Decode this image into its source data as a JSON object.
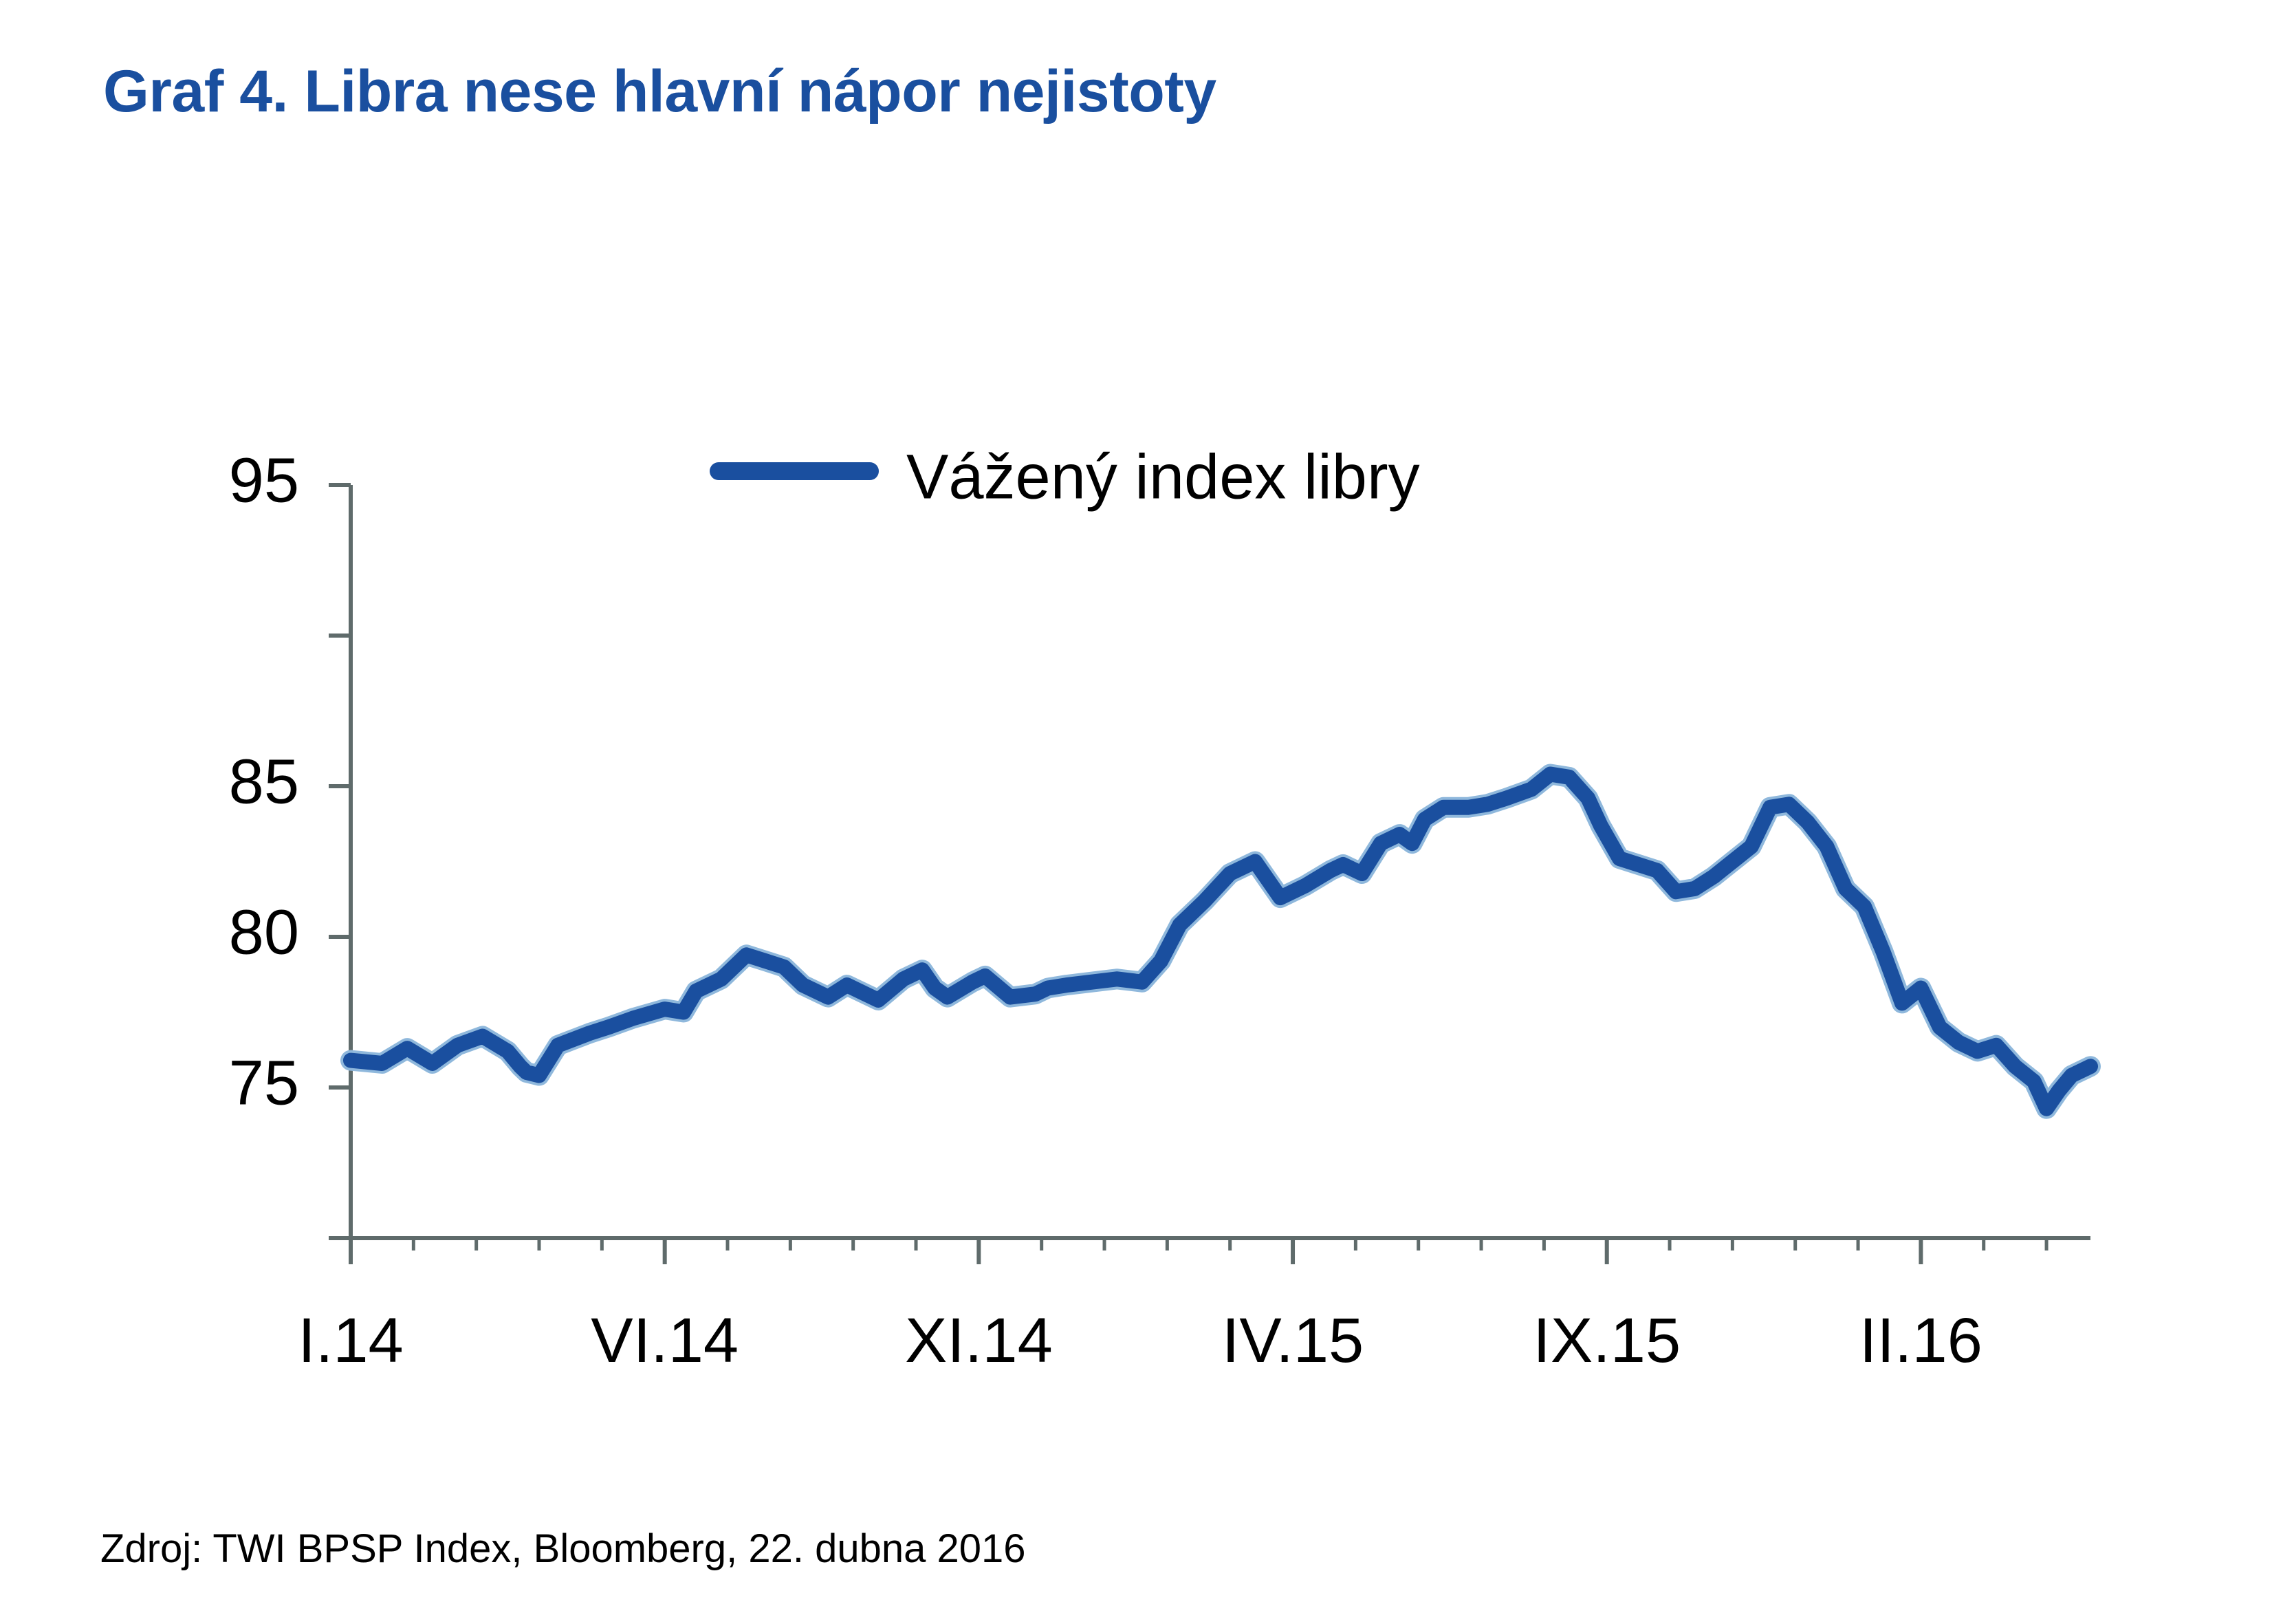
{
  "title": "Graf 4. Libra nese hlavní nápor nejistoty",
  "source": "Zdroj: TWI BPSP Index, Bloomberg, 22. dubna 2016",
  "colors": {
    "title": "#1a4f9f",
    "line": "#1a4f9f",
    "line_halo": "#8fb8dc",
    "axis": "#5f6b6b"
  },
  "chart_data": {
    "type": "line",
    "title": "Graf 4. Libra nese hlavní nápor nejistoty",
    "legend": {
      "position": "top-center",
      "entries": [
        "Vážený index libry"
      ]
    },
    "grid": false,
    "ylim": [
      70,
      95
    ],
    "yticks": [
      75,
      80,
      85,
      95
    ],
    "xtick_labels": [
      "I.14",
      "VI.14",
      "XI.14",
      "IV.15",
      "IX.15",
      "II.16"
    ],
    "xtick_positions": [
      0,
      5,
      10,
      15,
      20,
      25
    ],
    "xlim": [
      0,
      27.7
    ],
    "series": [
      {
        "name": "Vážený index libry",
        "x": [
          0,
          0.5,
          0.9,
          1.3,
          1.7,
          2.1,
          2.5,
          2.7,
          2.8,
          3.0,
          3.3,
          3.8,
          4.1,
          4.5,
          5.0,
          5.3,
          5.5,
          5.9,
          6.3,
          6.6,
          6.9,
          7.2,
          7.6,
          7.9,
          8.4,
          8.8,
          9.1,
          9.3,
          9.5,
          9.9,
          10.1,
          10.5,
          10.9,
          11.1,
          11.4,
          11.8,
          12.2,
          12.6,
          12.9,
          13.2,
          13.6,
          14.0,
          14.4,
          14.8,
          15.2,
          15.6,
          15.8,
          16.1,
          16.4,
          16.7,
          16.9,
          17.1,
          17.4,
          17.8,
          18.1,
          18.4,
          18.8,
          19.1,
          19.4,
          19.7,
          19.9,
          20.2,
          20.5,
          20.8,
          21.1,
          21.4,
          21.7,
          22.0,
          22.3,
          22.6,
          22.9,
          23.2,
          23.5,
          23.8,
          24.1,
          24.4,
          24.7,
          25.0,
          25.3,
          25.6,
          25.9,
          26.2,
          26.5,
          26.8,
          27.0,
          27.2,
          27.4,
          27.7
        ],
        "y": [
          75.9,
          75.8,
          76.3,
          75.8,
          76.4,
          76.7,
          76.2,
          75.7,
          75.5,
          75.4,
          76.4,
          76.8,
          77.0,
          77.3,
          77.6,
          77.5,
          78.2,
          78.6,
          79.4,
          79.2,
          79.0,
          78.4,
          78.0,
          78.4,
          77.9,
          78.6,
          78.9,
          78.3,
          78.0,
          78.5,
          78.7,
          78.0,
          78.1,
          78.3,
          78.4,
          78.5,
          78.6,
          78.5,
          79.2,
          80.4,
          81.2,
          82.1,
          82.5,
          81.3,
          81.7,
          82.2,
          82.4,
          82.1,
          83.1,
          83.4,
          83.1,
          83.9,
          84.3,
          84.3,
          84.4,
          84.6,
          84.9,
          85.4,
          85.3,
          84.6,
          83.7,
          82.6,
          82.4,
          82.2,
          81.5,
          81.6,
          82.0,
          82.5,
          83.0,
          84.3,
          84.4,
          83.8,
          83.0,
          81.6,
          81.0,
          79.5,
          77.8,
          78.3,
          77.0,
          76.5,
          76.2,
          76.4,
          75.7,
          75.2,
          74.3,
          74.9,
          75.4,
          75.7
        ]
      }
    ]
  }
}
